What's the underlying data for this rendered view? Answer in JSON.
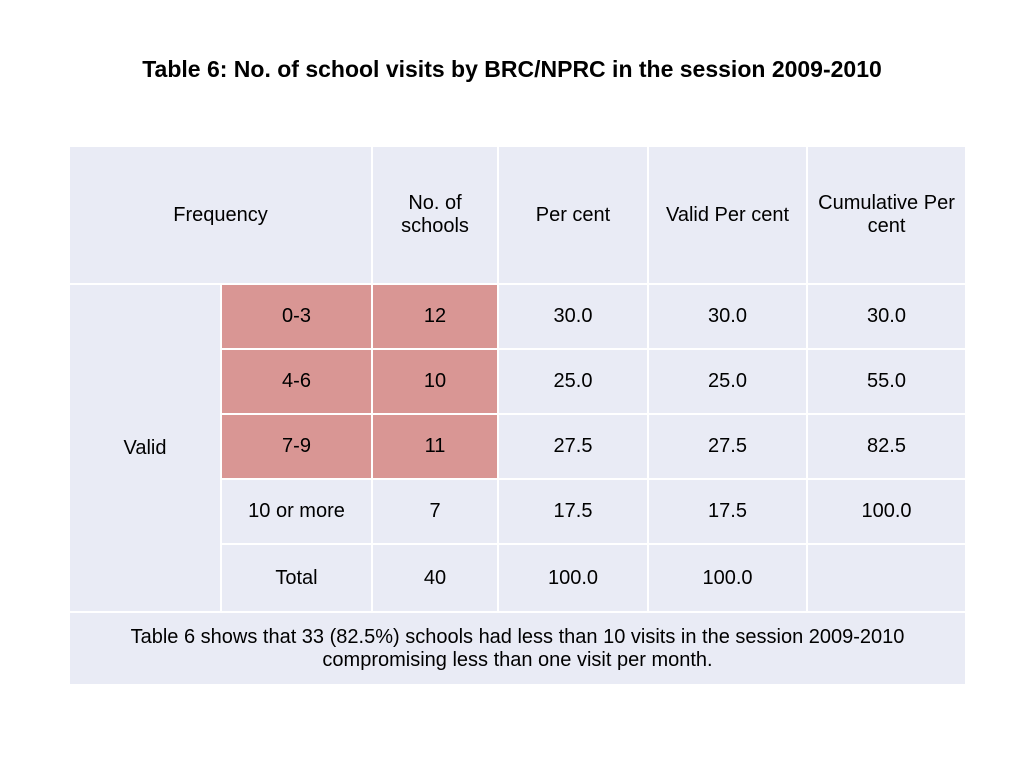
{
  "title": "Table 6: No. of school visits by BRC/NPRC in the session 2009-2010",
  "header": {
    "frequency": "Frequency",
    "schools": "No. of schools",
    "per_cent": "Per cent",
    "valid_per_cent": "Valid Per cent",
    "cumulative_per_cent": "Cumulative Per cent"
  },
  "valid_label": "Valid",
  "rows": [
    {
      "range": "0-3",
      "schools": "12",
      "per_cent": "30.0",
      "valid_per_cent": "30.0",
      "cumulative": "30.0"
    },
    {
      "range": "4-6",
      "schools": "10",
      "per_cent": "25.0",
      "valid_per_cent": "25.0",
      "cumulative": "55.0"
    },
    {
      "range": "7-9",
      "schools": "11",
      "per_cent": "27.5",
      "valid_per_cent": "27.5",
      "cumulative": "82.5"
    },
    {
      "range": "10 or more",
      "schools": "7",
      "per_cent": "17.5",
      "valid_per_cent": "17.5",
      "cumulative": "100.0"
    }
  ],
  "total": {
    "label": "Total",
    "schools": "40",
    "per_cent": "100.0",
    "valid_per_cent": "100.0",
    "cumulative": ""
  },
  "note": "Table 6 shows that 33 (82.5%) schools had less than 10 visits in the session 2009-2010 compromising less than one visit per month.",
  "colors": {
    "table_bg": "#e9ebf5",
    "highlight": "#d99694",
    "grid_line": "#ffffff"
  }
}
